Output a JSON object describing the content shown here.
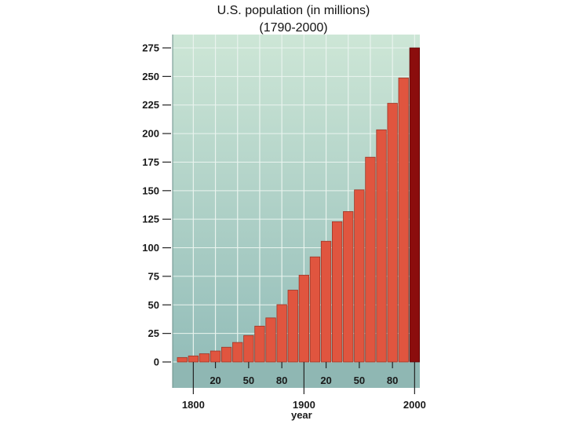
{
  "chart_data": {
    "type": "bar",
    "title": "U.S. population (in millions)",
    "subtitle": "(1790-2000)",
    "xlabel": "year",
    "ylabel": "",
    "ylim": [
      0,
      275
    ],
    "yticks": [
      0,
      25,
      50,
      75,
      100,
      125,
      150,
      175,
      200,
      225,
      250,
      275
    ],
    "x": [
      1790,
      1800,
      1810,
      1820,
      1830,
      1840,
      1850,
      1860,
      1870,
      1880,
      1890,
      1900,
      1910,
      1920,
      1930,
      1940,
      1950,
      1960,
      1970,
      1980,
      1990,
      2000
    ],
    "values": [
      3.9,
      5.3,
      7.2,
      9.6,
      12.9,
      17.1,
      23.2,
      31.4,
      38.6,
      50.2,
      62.9,
      76.0,
      92.0,
      105.7,
      122.8,
      131.7,
      150.7,
      179.3,
      203.3,
      226.5,
      248.7,
      275.0
    ],
    "inner_tick_labels": [
      "20",
      "50",
      "80",
      "20",
      "50",
      "80"
    ],
    "inner_tick_years": [
      1820,
      1850,
      1880,
      1920,
      1950,
      1980
    ],
    "outer_tick_labels": [
      "1800",
      "1900",
      "2000"
    ],
    "outer_tick_years": [
      1800,
      1900,
      2000
    ],
    "grid": true,
    "colors": {
      "bar": "#e0553f",
      "bar_highlight": "#8b0d0d",
      "bg_top": "#cde6d6",
      "bg_bottom": "#8fbab7",
      "inner_axis_band": "#8fb7b3"
    }
  }
}
